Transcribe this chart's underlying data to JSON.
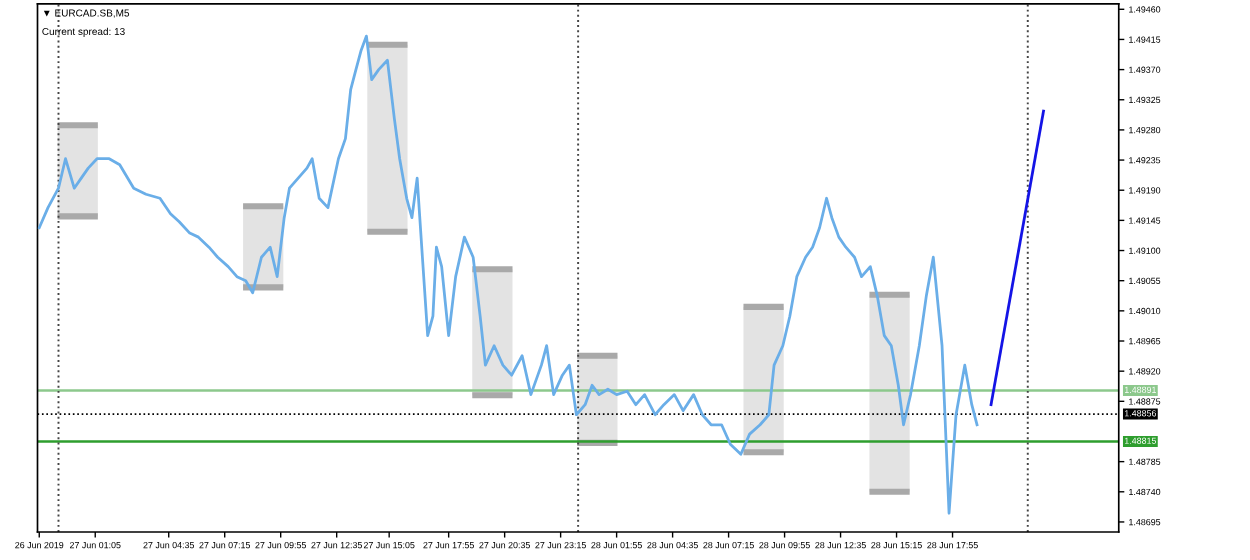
{
  "chart_data": {
    "type": "line",
    "title": "▼ EURCAD.SB,M5",
    "subtitle": "Current spread: 13",
    "xlim": [
      "2019-06-26T22:20",
      "2019-06-29T01:50"
    ],
    "ylim": [
      1.4868,
      1.49468
    ],
    "xticks": [
      {
        "value": "2019-06-26T22:25",
        "label": "26 Jun 2019"
      },
      {
        "value": "2019-06-27T01:05",
        "label": "27 Jun 01:05"
      },
      {
        "value": "2019-06-27T04:35",
        "label": "27 Jun 04:35"
      },
      {
        "value": "2019-06-27T07:15",
        "label": "27 Jun 07:15"
      },
      {
        "value": "2019-06-27T09:55",
        "label": "27 Jun 09:55"
      },
      {
        "value": "2019-06-27T12:35",
        "label": "27 Jun 12:35"
      },
      {
        "value": "2019-06-27T15:05",
        "label": "27 Jun 15:05"
      },
      {
        "value": "2019-06-27T17:55",
        "label": "27 Jun 17:55"
      },
      {
        "value": "2019-06-27T20:35",
        "label": "27 Jun 20:35"
      },
      {
        "value": "2019-06-27T23:15",
        "label": "27 Jun 23:15"
      },
      {
        "value": "2019-06-28T01:55",
        "label": "28 Jun 01:55"
      },
      {
        "value": "2019-06-28T04:35",
        "label": "28 Jun 04:35"
      },
      {
        "value": "2019-06-28T07:15",
        "label": "28 Jun 07:15"
      },
      {
        "value": "2019-06-28T09:55",
        "label": "28 Jun 09:55"
      },
      {
        "value": "2019-06-28T12:35",
        "label": "28 Jun 12:35"
      },
      {
        "value": "2019-06-28T15:15",
        "label": "28 Jun 15:15"
      },
      {
        "value": "2019-06-28T17:55",
        "label": "28 Jun 17:55"
      }
    ],
    "yticks": [
      {
        "value": 1.4946,
        "label": "1.49460"
      },
      {
        "value": 1.49415,
        "label": "1.49415"
      },
      {
        "value": 1.4937,
        "label": "1.49370"
      },
      {
        "value": 1.49325,
        "label": "1.49325"
      },
      {
        "value": 1.4928,
        "label": "1.49280"
      },
      {
        "value": 1.49235,
        "label": "1.49235"
      },
      {
        "value": 1.4919,
        "label": "1.49190"
      },
      {
        "value": 1.49145,
        "label": "1.49145"
      },
      {
        "value": 1.491,
        "label": "1.49100"
      },
      {
        "value": 1.49055,
        "label": "1.49055"
      },
      {
        "value": 1.4901,
        "label": "1.49010"
      },
      {
        "value": 1.48965,
        "label": "1.48965"
      },
      {
        "value": 1.4892,
        "label": "1.48920"
      },
      {
        "value": 1.48875,
        "label": "1.48875"
      },
      {
        "value": 1.48785,
        "label": "1.48785"
      },
      {
        "value": 1.4874,
        "label": "1.48740"
      },
      {
        "value": 1.48695,
        "label": "1.48695"
      }
    ],
    "grid": false,
    "ref_lines": [
      {
        "axis": "y",
        "value": 1.48891,
        "label": "1.48891",
        "color": "#8cc88c",
        "line_style": "solid"
      },
      {
        "axis": "y",
        "value": 1.48815,
        "label": "1.48815",
        "color": "#2e9e2e",
        "line_style": "solid"
      },
      {
        "axis": "y",
        "value": 1.48856,
        "label": "1.48856",
        "color": "#000000",
        "line_style": "dotted"
      },
      {
        "axis": "x",
        "value": "2019-06-26T23:20",
        "color": "#444444",
        "line_style": "dotted"
      },
      {
        "axis": "x",
        "value": "2019-06-28T00:05",
        "color": "#444444",
        "line_style": "dotted"
      },
      {
        "axis": "x",
        "value": "2019-06-28T21:30",
        "color": "#444444",
        "line_style": "dotted"
      }
    ],
    "series": [
      {
        "type": "bar",
        "color": "#e3e3e3",
        "x": [
          "2019-06-27T00:15",
          "2019-06-27T09:05",
          "2019-06-27T15:00",
          "2019-06-27T20:00",
          "2019-06-28T01:00",
          "2019-06-28T08:55",
          "2019-06-28T14:55"
        ],
        "base": [
          1.49151,
          1.49045,
          1.49128,
          1.48884,
          1.48813,
          1.48799,
          1.4874
        ],
        "values": [
          0.00136,
          0.00121,
          0.00279,
          0.00188,
          0.0013,
          0.00217,
          0.00294
        ]
      },
      {
        "color": "#6aaee8",
        "x": [
          "2019-06-26T22:25",
          "2019-06-26T22:50",
          "2019-06-26T23:20",
          "2019-06-26T23:40",
          "2019-06-27T00:05",
          "2019-06-27T00:25",
          "2019-06-27T00:45",
          "2019-06-27T01:10",
          "2019-06-27T01:45",
          "2019-06-27T02:15",
          "2019-06-27T02:55",
          "2019-06-27T03:30",
          "2019-06-27T04:10",
          "2019-06-27T04:40",
          "2019-06-27T05:05",
          "2019-06-27T05:35",
          "2019-06-27T06:00",
          "2019-06-27T06:30",
          "2019-06-27T06:55",
          "2019-06-27T07:25",
          "2019-06-27T07:50",
          "2019-06-27T08:15",
          "2019-06-27T08:35",
          "2019-06-27T09:00",
          "2019-06-27T09:25",
          "2019-06-27T09:45",
          "2019-06-27T10:05",
          "2019-06-27T10:20",
          "2019-06-27T10:45",
          "2019-06-27T11:10",
          "2019-06-27T11:25",
          "2019-06-27T11:45",
          "2019-06-27T12:10",
          "2019-06-27T12:40",
          "2019-06-27T13:00",
          "2019-06-27T13:15",
          "2019-06-27T13:30",
          "2019-06-27T13:45",
          "2019-06-27T14:00",
          "2019-06-27T14:15",
          "2019-06-27T14:35",
          "2019-06-27T15:00",
          "2019-06-27T15:20",
          "2019-06-27T15:35",
          "2019-06-27T15:55",
          "2019-06-27T16:10",
          "2019-06-27T16:25",
          "2019-06-27T16:40",
          "2019-06-27T16:55",
          "2019-06-27T17:10",
          "2019-06-27T17:20",
          "2019-06-27T17:35",
          "2019-06-27T17:55",
          "2019-06-27T18:15",
          "2019-06-27T18:40",
          "2019-06-27T19:05",
          "2019-06-27T19:25",
          "2019-06-27T19:40",
          "2019-06-27T20:05",
          "2019-06-27T20:30",
          "2019-06-27T20:55",
          "2019-06-27T21:25",
          "2019-06-27T21:50",
          "2019-06-27T22:20",
          "2019-06-27T22:35",
          "2019-06-27T22:55",
          "2019-06-27T23:20",
          "2019-06-27T23:40",
          "2019-06-28T00:00",
          "2019-06-28T00:25",
          "2019-06-28T00:45",
          "2019-06-28T01:05",
          "2019-06-28T01:30",
          "2019-06-28T01:55",
          "2019-06-28T02:25",
          "2019-06-28T02:50",
          "2019-06-28T03:15",
          "2019-06-28T03:45",
          "2019-06-28T04:10",
          "2019-06-28T04:40",
          "2019-06-28T05:05",
          "2019-06-28T05:35",
          "2019-06-28T06:00",
          "2019-06-28T06:25",
          "2019-06-28T06:55",
          "2019-06-28T07:20",
          "2019-06-28T07:50",
          "2019-06-28T08:15",
          "2019-06-28T08:45",
          "2019-06-28T09:10",
          "2019-06-28T09:25",
          "2019-06-28T09:50",
          "2019-06-28T10:10",
          "2019-06-28T10:30",
          "2019-06-28T10:55",
          "2019-06-28T11:15",
          "2019-06-28T11:35",
          "2019-06-28T11:55",
          "2019-06-28T12:10",
          "2019-06-28T12:30",
          "2019-06-28T12:50",
          "2019-06-28T13:15",
          "2019-06-28T13:35",
          "2019-06-28T14:00",
          "2019-06-28T14:20",
          "2019-06-28T14:40",
          "2019-06-28T15:00",
          "2019-06-28T15:20",
          "2019-06-28T15:35",
          "2019-06-28T15:55",
          "2019-06-28T16:20",
          "2019-06-28T16:40",
          "2019-06-28T17:00",
          "2019-06-28T17:25",
          "2019-06-28T17:45",
          "2019-06-28T18:05",
          "2019-06-28T18:30",
          "2019-06-28T18:50",
          "2019-06-28T19:05"
        ],
        "values": [
          1.49134,
          1.49164,
          1.49193,
          1.49237,
          1.49193,
          1.49208,
          1.49223,
          1.49237,
          1.49237,
          1.49228,
          1.49193,
          1.49184,
          1.49178,
          1.49155,
          1.49143,
          1.49126,
          1.4912,
          1.49105,
          1.4909,
          1.49076,
          1.49061,
          1.49055,
          1.49037,
          1.4909,
          1.49105,
          1.49061,
          1.49149,
          1.49193,
          1.49208,
          1.49223,
          1.49237,
          1.49178,
          1.49164,
          1.49237,
          1.49267,
          1.4934,
          1.4937,
          1.49399,
          1.4942,
          1.49355,
          1.4937,
          1.49384,
          1.49296,
          1.49237,
          1.49178,
          1.49149,
          1.49208,
          1.4909,
          1.48973,
          1.49002,
          1.49105,
          1.49076,
          1.48973,
          1.49061,
          1.4912,
          1.4909,
          1.49002,
          1.48929,
          1.48958,
          1.48929,
          1.48914,
          1.48943,
          1.48885,
          1.48929,
          1.48958,
          1.48885,
          1.48914,
          1.48929,
          1.48855,
          1.4887,
          1.48899,
          1.48885,
          1.48893,
          1.48885,
          1.4889,
          1.4887,
          1.48885,
          1.48855,
          1.4887,
          1.48885,
          1.48861,
          1.48885,
          1.48855,
          1.4884,
          1.4884,
          1.48811,
          1.48796,
          1.48826,
          1.4884,
          1.48855,
          1.48929,
          1.48958,
          1.49002,
          1.49061,
          1.4909,
          1.49105,
          1.49134,
          1.49178,
          1.49149,
          1.4912,
          1.49105,
          1.4909,
          1.49061,
          1.49076,
          1.49032,
          1.48973,
          1.48958,
          1.48899,
          1.4884,
          1.48885,
          1.48958,
          1.49032,
          1.4909,
          1.48958,
          1.48708,
          1.48855,
          1.48929,
          1.4887,
          1.4884
        ]
      },
      {
        "type": "line",
        "color": "#1414e6",
        "x": [
          "2019-06-28T19:45",
          "2019-06-28T22:15"
        ],
        "values": [
          1.4887,
          1.49308
        ]
      }
    ]
  }
}
